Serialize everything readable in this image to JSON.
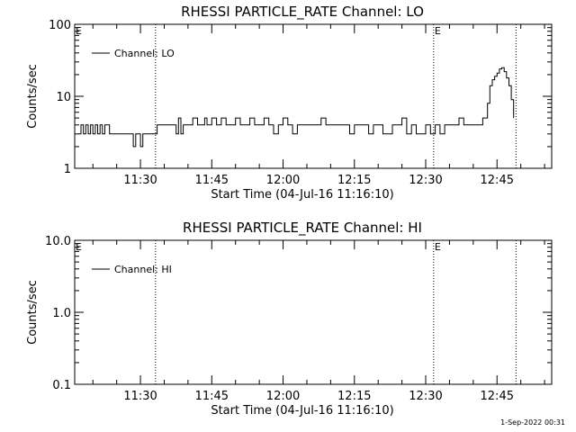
{
  "footer_timestamp": "1-Sep-2022 00:31",
  "colors": {
    "background": "#ffffff",
    "foreground": "#000000"
  },
  "chart_data": [
    {
      "type": "line",
      "title": "RHESSI PARTICLE_RATE Channel: LO",
      "xlabel": "Start Time (04-Jul-16 11:16:10)",
      "ylabel": "Counts/sec",
      "y_scale": "log",
      "ylim": [
        1,
        100
      ],
      "ytick_labels": [
        "1",
        "10",
        "100"
      ],
      "xlim": [
        "11:16:10",
        "12:56:30"
      ],
      "xtick_labels": [
        "11:30",
        "11:45",
        "12:00",
        "12:15",
        "12:30",
        "12:45"
      ],
      "xticks_minor_minutes": 5,
      "grid": false,
      "legend_position": "top-left",
      "series": [
        {
          "name": "Channel: LO",
          "x": [
            "11:17:00",
            "11:17:30",
            "11:18:00",
            "11:18:30",
            "11:19:00",
            "11:19:30",
            "11:20:00",
            "11:20:30",
            "11:21:00",
            "11:21:30",
            "11:22:00",
            "11:22:30",
            "11:23:00",
            "11:23:30",
            "11:24:00",
            "11:25:00",
            "11:26:00",
            "11:27:00",
            "11:28:00",
            "11:28:30",
            "11:29:00",
            "11:30:00",
            "11:30:30",
            "11:31:00",
            "11:32:00",
            "11:33:00",
            "11:33:30",
            "11:34:00",
            "11:35:00",
            "11:36:00",
            "11:37:00",
            "11:37:30",
            "11:38:00",
            "11:38:30",
            "11:39:00",
            "11:40:00",
            "11:41:00",
            "11:42:00",
            "11:43:00",
            "11:43:30",
            "11:44:00",
            "11:45:00",
            "11:46:00",
            "11:47:00",
            "11:48:00",
            "11:49:00",
            "11:50:00",
            "11:51:00",
            "11:52:00",
            "11:53:00",
            "11:54:00",
            "11:55:00",
            "11:56:00",
            "11:57:00",
            "11:58:00",
            "11:59:00",
            "12:00:00",
            "12:01:00",
            "12:02:00",
            "12:03:00",
            "12:04:00",
            "12:05:00",
            "12:06:00",
            "12:07:00",
            "12:08:00",
            "12:09:00",
            "12:10:00",
            "12:11:00",
            "12:12:00",
            "12:13:00",
            "12:14:00",
            "12:15:00",
            "12:16:00",
            "12:17:00",
            "12:18:00",
            "12:19:00",
            "12:20:00",
            "12:21:00",
            "12:22:00",
            "12:23:00",
            "12:24:00",
            "12:25:00",
            "12:26:00",
            "12:27:00",
            "12:28:00",
            "12:29:00",
            "12:30:00",
            "12:31:00",
            "12:32:00",
            "12:33:00",
            "12:34:00",
            "12:35:00",
            "12:36:00",
            "12:37:00",
            "12:38:00",
            "12:39:00",
            "12:40:00",
            "12:41:00",
            "12:42:00",
            "12:43:00",
            "12:43:30",
            "12:44:00",
            "12:44:30",
            "12:45:00",
            "12:45:30",
            "12:46:00",
            "12:46:30",
            "12:47:00",
            "12:47:30",
            "12:48:00",
            "12:48:30"
          ],
          "values": [
            3.0,
            4.0,
            3.0,
            4.0,
            3.0,
            4.0,
            3.0,
            4.0,
            3.0,
            4.0,
            3.0,
            4.0,
            4.0,
            3.0,
            3.0,
            3.0,
            3.0,
            3.0,
            3.0,
            2.0,
            3.0,
            2.0,
            3.0,
            3.0,
            3.0,
            3.0,
            4.0,
            4.0,
            4.0,
            4.0,
            4.0,
            3.0,
            5.0,
            3.0,
            4.0,
            4.0,
            5.0,
            4.0,
            4.0,
            5.0,
            4.0,
            5.0,
            4.0,
            5.0,
            4.0,
            4.0,
            5.0,
            4.0,
            4.0,
            5.0,
            4.0,
            4.0,
            5.0,
            4.0,
            3.0,
            4.0,
            5.0,
            4.0,
            3.0,
            4.0,
            4.0,
            4.0,
            4.0,
            4.0,
            5.0,
            4.0,
            4.0,
            4.0,
            4.0,
            4.0,
            3.0,
            4.0,
            4.0,
            4.0,
            3.0,
            4.0,
            4.0,
            3.0,
            3.0,
            4.0,
            4.0,
            5.0,
            3.0,
            4.0,
            3.0,
            3.0,
            4.0,
            3.0,
            4.0,
            3.0,
            4.0,
            4.0,
            4.0,
            5.0,
            4.0,
            4.0,
            4.0,
            4.0,
            5.0,
            8.0,
            14.0,
            17.0,
            19.0,
            21.0,
            24.0,
            25.0,
            22.0,
            18.0,
            14.0,
            9.0,
            5.0
          ]
        }
      ],
      "annotations": [
        {
          "type": "vline",
          "x": "11:33:10",
          "label": ""
        },
        {
          "type": "vline",
          "x": "12:31:40",
          "label": "E"
        },
        {
          "type": "vline",
          "x": "12:49:00",
          "label": ""
        },
        {
          "type": "marker",
          "x": "11:16:10",
          "label": "E"
        }
      ]
    },
    {
      "type": "line",
      "title": "RHESSI PARTICLE_RATE Channel: HI",
      "xlabel": "Start Time (04-Jul-16 11:16:10)",
      "ylabel": "Counts/sec",
      "y_scale": "log",
      "ylim": [
        0.1,
        10
      ],
      "ytick_labels": [
        "0.1",
        "1.0",
        "10.0"
      ],
      "xlim": [
        "11:16:10",
        "12:56:30"
      ],
      "xtick_labels": [
        "11:30",
        "11:45",
        "12:00",
        "12:15",
        "12:30",
        "12:45"
      ],
      "xticks_minor_minutes": 5,
      "grid": false,
      "legend_position": "top-left",
      "series": [
        {
          "name": "Channel: HI",
          "x": [],
          "values": []
        }
      ],
      "annotations": [
        {
          "type": "vline",
          "x": "11:33:10",
          "label": ""
        },
        {
          "type": "vline",
          "x": "12:31:40",
          "label": "E"
        },
        {
          "type": "vline",
          "x": "12:49:00",
          "label": ""
        },
        {
          "type": "marker",
          "x": "11:16:10",
          "label": "E"
        }
      ]
    }
  ]
}
